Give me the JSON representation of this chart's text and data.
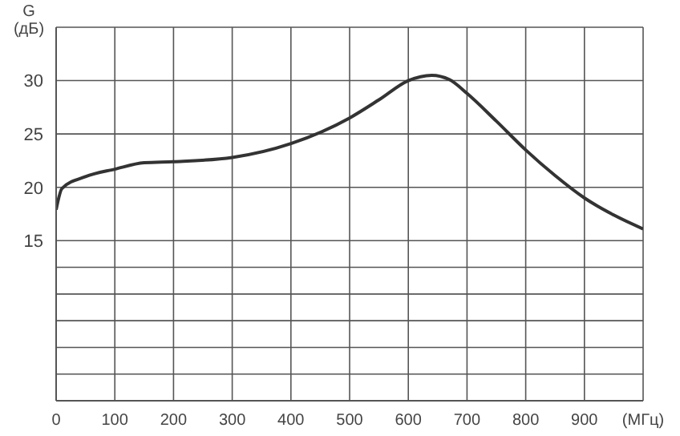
{
  "chart_data": {
    "type": "line",
    "ylabel": "G (дБ)",
    "x": [
      0,
      10,
      50,
      100,
      150,
      200,
      300,
      400,
      500,
      550,
      600,
      640,
      670,
      700,
      750,
      800,
      850,
      900,
      950,
      1000
    ],
    "series": [
      {
        "color": "#333333",
        "values": [
          17.9,
          19.9,
          21.0,
          21.7,
          22.3,
          22.4,
          22.8,
          24.1,
          26.5,
          28.2,
          30.0,
          30.5,
          30.1,
          28.8,
          26.2,
          23.5,
          21.1,
          19.0,
          17.4,
          16.1
        ]
      }
    ],
    "xlim": [
      0,
      1000
    ],
    "xticks": [
      0,
      100,
      200,
      300,
      400,
      500,
      600,
      700,
      800,
      900,
      {
        "value": 1000,
        "label": "(МГц)"
      }
    ],
    "ylim": [
      0,
      35
    ],
    "yticks": [
      {
        "value": 0,
        "label": null
      },
      {
        "value": 2.5,
        "label": null
      },
      {
        "value": 5,
        "label": null
      },
      {
        "value": 7.5,
        "label": null
      },
      {
        "value": 10,
        "label": null
      },
      {
        "value": 12.5,
        "label": null
      },
      15,
      20,
      25,
      30,
      {
        "value": 35,
        "label": null
      }
    ],
    "grid": true,
    "marker": "none",
    "line_style": "solid",
    "legend": false
  }
}
